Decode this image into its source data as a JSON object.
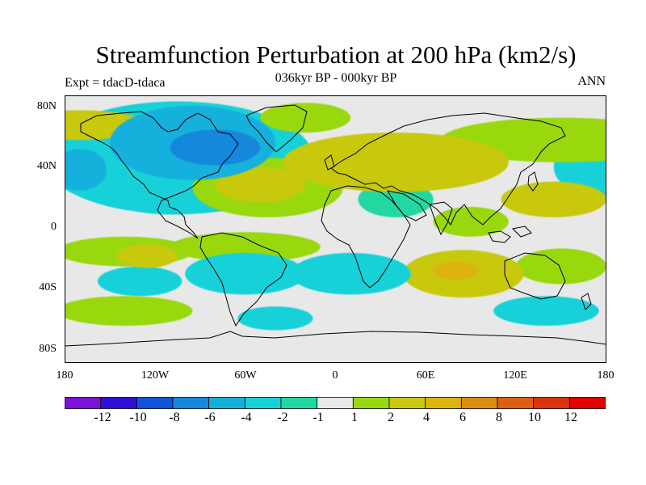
{
  "figure": {
    "title": "Streamfunction Perturbation at 200 hPa (km2/s)",
    "subtitle": "036kyr BP - 000kyr BP",
    "left_label": "Expt = tdacD-tdaca",
    "right_label": "ANN"
  },
  "axes": {
    "lat_labels": [
      "80N",
      "40N",
      "0",
      "40S",
      "80S"
    ],
    "lon_labels": [
      "180",
      "120W",
      "60W",
      "0",
      "60E",
      "120E",
      "180"
    ]
  },
  "colorbar": {
    "labels": [
      "-12",
      "-10",
      "-8",
      "-6",
      "-4",
      "-2",
      "-1",
      "1",
      "2",
      "4",
      "6",
      "8",
      "10",
      "12"
    ],
    "colors": [
      "#7a12d8",
      "#3010d8",
      "#1054d8",
      "#1488dc",
      "#14b0dc",
      "#18d2d8",
      "#20d8a0",
      "#e8e8e8",
      "#98d810",
      "#c8c810",
      "#dcb410",
      "#dc8c10",
      "#dc6010",
      "#dc3410",
      "#e00000"
    ]
  },
  "chart_data": {
    "type": "heatmap",
    "title": "Streamfunction Perturbation at 200 hPa (km2/s)",
    "subtitle": "036kyr BP - 000kyr BP",
    "experiment": "Expt = tdacD-tdaca",
    "season": "ANN",
    "units": "km2/s",
    "xlim": [
      -180,
      180
    ],
    "ylim": [
      -90,
      90
    ],
    "contour_levels": [
      -12,
      -10,
      -8,
      -6,
      -4,
      -2,
      -1,
      1,
      2,
      4,
      6,
      8,
      10,
      12
    ],
    "regions": [
      {
        "lon": -80,
        "lat": 55,
        "rlon": 30,
        "rlat": 12,
        "value": -7
      },
      {
        "lon": -95,
        "lat": 58,
        "rlon": 55,
        "rlat": 25,
        "value": -4
      },
      {
        "lon": -105,
        "lat": 48,
        "rlon": 90,
        "rlat": 38,
        "value": -2
      },
      {
        "lon": -110,
        "lat": 20,
        "rlon": 35,
        "rlat": 10,
        "value": -1.5
      },
      {
        "lon": -170,
        "lat": 40,
        "rlon": 18,
        "rlat": 14,
        "value": -4
      },
      {
        "lon": 175,
        "lat": 42,
        "rlon": 30,
        "rlat": 20,
        "value": -2
      },
      {
        "lon": -170,
        "lat": 70,
        "rlon": 45,
        "rlat": 10,
        "value": 2.5
      },
      {
        "lon": -20,
        "lat": 75,
        "rlon": 30,
        "rlat": 10,
        "value": 2
      },
      {
        "lon": -50,
        "lat": 30,
        "rlon": 30,
        "rlat": 12,
        "value": 3
      },
      {
        "lon": -45,
        "lat": 28,
        "rlon": 50,
        "rlat": 20,
        "value": 2
      },
      {
        "lon": 45,
        "lat": 45,
        "rlon": 30,
        "rlat": 10,
        "value": 4
      },
      {
        "lon": 40,
        "lat": 45,
        "rlon": 75,
        "rlat": 20,
        "value": 2.5
      },
      {
        "lon": 40,
        "lat": 20,
        "rlon": 25,
        "rlat": 12,
        "value": -1.5
      },
      {
        "lon": 145,
        "lat": 20,
        "rlon": 35,
        "rlat": 12,
        "value": 2.5
      },
      {
        "lon": 150,
        "lat": 60,
        "rlon": 80,
        "rlat": 15,
        "value": 2
      },
      {
        "lon": -140,
        "lat": -15,
        "rlon": 45,
        "rlat": 10,
        "value": 2
      },
      {
        "lon": -60,
        "lat": -12,
        "rlon": 50,
        "rlat": 10,
        "value": 2
      },
      {
        "lon": -125,
        "lat": -18,
        "rlon": 20,
        "rlat": 8,
        "value": 4
      },
      {
        "lon": -60,
        "lat": -30,
        "rlon": 40,
        "rlat": 14,
        "value": -2.5
      },
      {
        "lon": -130,
        "lat": -35,
        "rlon": 28,
        "rlat": 10,
        "value": -2
      },
      {
        "lon": 10,
        "lat": -30,
        "rlon": 40,
        "rlat": 14,
        "value": -3
      },
      {
        "lon": 85,
        "lat": -30,
        "rlon": 40,
        "rlat": 16,
        "value": 2.5
      },
      {
        "lon": 80,
        "lat": -28,
        "rlon": 15,
        "rlat": 6,
        "value": 5
      },
      {
        "lon": 150,
        "lat": -25,
        "rlon": 30,
        "rlat": 12,
        "value": 2
      },
      {
        "lon": -140,
        "lat": -55,
        "rlon": 45,
        "rlat": 10,
        "value": 2
      },
      {
        "lon": 140,
        "lat": -55,
        "rlon": 35,
        "rlat": 10,
        "value": -2.5
      },
      {
        "lon": -40,
        "lat": -60,
        "rlon": 25,
        "rlat": 8,
        "value": -2
      },
      {
        "lon": 90,
        "lat": 5,
        "rlon": 25,
        "rlat": 10,
        "value": 2
      }
    ]
  }
}
